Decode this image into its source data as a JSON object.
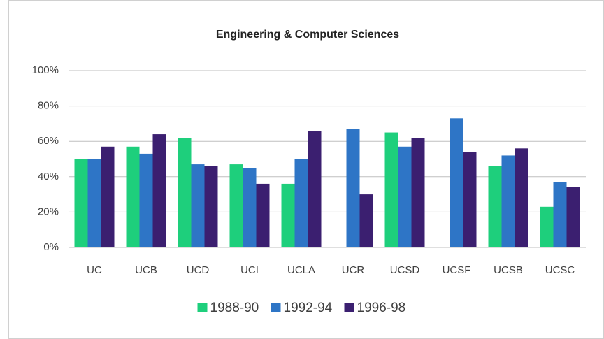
{
  "chart_data": {
    "type": "bar",
    "title": "Engineering & Computer Sciences",
    "categories": [
      "UC",
      "UCB",
      "UCD",
      "UCI",
      "UCLA",
      "UCR",
      "UCSD",
      "UCSF",
      "UCSB",
      "UCSC"
    ],
    "series": [
      {
        "name": "1988-90",
        "color": "#1ecf7c",
        "values": [
          50,
          57,
          62,
          47,
          36,
          null,
          65,
          null,
          46,
          23
        ]
      },
      {
        "name": "1992-94",
        "color": "#2e75c6",
        "values": [
          50,
          53,
          47,
          45,
          50,
          67,
          57,
          73,
          52,
          37
        ]
      },
      {
        "name": "1996-98",
        "color": "#3b1f70",
        "values": [
          57,
          64,
          46,
          36,
          66,
          30,
          62,
          54,
          56,
          34
        ]
      }
    ],
    "ylim": [
      0,
      100
    ],
    "yticks": [
      {
        "value": 0,
        "label": "0%"
      },
      {
        "value": 20,
        "label": "20%"
      },
      {
        "value": 40,
        "label": "40%"
      },
      {
        "value": 60,
        "label": "60%"
      },
      {
        "value": 80,
        "label": "80%"
      },
      {
        "value": 100,
        "label": "100%"
      }
    ],
    "grid": true,
    "legend": "bottom"
  }
}
